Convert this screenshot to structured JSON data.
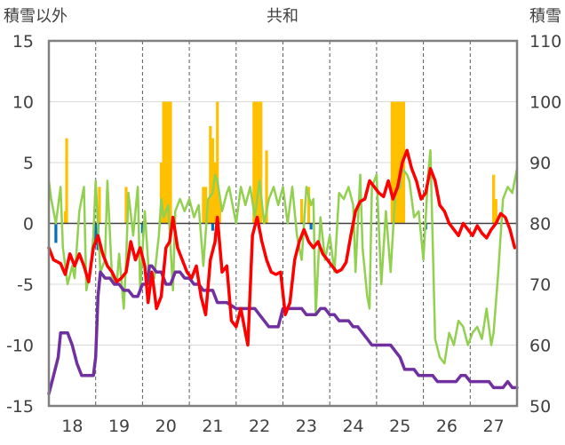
{
  "chart_data": {
    "type": "line",
    "title": "共和",
    "ylabel_left": "積雪以外",
    "ylabel_right": "積雪",
    "categories": [
      "18",
      "19",
      "20",
      "21",
      "22",
      "23",
      "24",
      "25",
      "26",
      "27"
    ],
    "ylim_left": [
      -15,
      15
    ],
    "ylim_right": [
      50,
      110
    ],
    "xlim": [
      17.5,
      27.5
    ],
    "left_ticks": [
      "15",
      "10",
      "5",
      "0",
      "-5",
      "-10",
      "-15"
    ],
    "right_ticks": [
      "110",
      "100",
      "90",
      "80",
      "70",
      "60",
      "50"
    ],
    "grid": {
      "horizontal": "solid",
      "vertical": "dashed"
    },
    "colors": {
      "red": "#ff0000",
      "green": "#92d050",
      "purple": "#7030a0",
      "orange": "#ffc000",
      "blue": "#0070c0",
      "grid": "#d9d9d9",
      "axis": "#808080"
    },
    "series": [
      {
        "key": "red",
        "axis": "left",
        "x": [
          17.5,
          17.6,
          17.75,
          17.85,
          17.95,
          18.05,
          18.15,
          18.25,
          18.35,
          18.45,
          18.55,
          18.65,
          18.75,
          18.85,
          18.95,
          19.05,
          19.15,
          19.25,
          19.35,
          19.45,
          19.55,
          19.62,
          19.7,
          19.8,
          19.9,
          20.0,
          20.08,
          20.15,
          20.25,
          20.35,
          20.45,
          20.55,
          20.65,
          20.75,
          20.85,
          20.95,
          21.05,
          21.1,
          21.2,
          21.3,
          21.4,
          21.5,
          21.6,
          21.7,
          21.75,
          21.85,
          21.95,
          22.05,
          22.15,
          22.25,
          22.35,
          22.45,
          22.55,
          22.65,
          22.75,
          22.85,
          22.95,
          23.05,
          23.15,
          23.25,
          23.35,
          23.45,
          23.55,
          23.65,
          23.75,
          23.85,
          23.95,
          24.05,
          24.15,
          24.25,
          24.35,
          24.45,
          24.55,
          24.65,
          24.75,
          24.85,
          24.95,
          25.05,
          25.15,
          25.25,
          25.35,
          25.45,
          25.55,
          25.65,
          25.75,
          25.85,
          25.95,
          26.05,
          26.15,
          26.25,
          26.35,
          26.45,
          26.55,
          26.65,
          26.75,
          26.85,
          26.95,
          27.05,
          27.15,
          27.25,
          27.35,
          27.45
        ],
        "y": [
          -2.0,
          -3.0,
          -3.3,
          -4.2,
          -2.5,
          -3.5,
          -2.5,
          -3.5,
          -4.8,
          -2.0,
          -1.0,
          -2.5,
          -3.5,
          -4.0,
          -4.8,
          -4.5,
          -4.0,
          -1.5,
          -3.0,
          -2.0,
          -3.5,
          -6.5,
          -4.0,
          -7.0,
          -6.0,
          -2.0,
          -1.5,
          0.5,
          -2.0,
          -3.0,
          -4.0,
          -4.5,
          -3.5,
          -6.0,
          -7.5,
          -3.0,
          -1.5,
          0.5,
          -4.0,
          -3.5,
          -8.0,
          -8.5,
          -7.0,
          -9.0,
          -10.0,
          -1.0,
          0.5,
          -1.5,
          -3.0,
          -4.0,
          -4.2,
          -4.0,
          -7.5,
          -6.5,
          -3.0,
          -1.5,
          -0.5,
          -1.5,
          -2.0,
          -1.5,
          -2.5,
          -3.0,
          -3.5,
          -4.0,
          -3.8,
          -3.2,
          -1.0,
          1.0,
          1.8,
          2.0,
          3.5,
          3.0,
          2.5,
          2.2,
          3.5,
          2.0,
          3.0,
          5.0,
          6.0,
          4.5,
          3.5,
          2.0,
          2.5,
          4.5,
          3.5,
          1.5,
          1.0,
          0.0,
          -0.5,
          -1.0,
          0.0,
          -0.5,
          -1.0,
          -0.2,
          -0.8,
          -1.2,
          -0.5,
          0.0,
          0.8,
          0.5,
          -0.5,
          -2.0
        ]
      },
      {
        "key": "green",
        "axis": "left",
        "x": [
          17.5,
          17.55,
          17.65,
          17.75,
          17.8,
          17.9,
          18.0,
          18.05,
          18.15,
          18.25,
          18.3,
          18.4,
          18.45,
          18.5,
          18.6,
          18.7,
          18.75,
          18.85,
          18.95,
          19.0,
          19.1,
          19.15,
          19.2,
          19.3,
          19.4,
          19.45,
          19.55,
          19.65,
          19.75,
          19.85,
          19.9,
          19.95,
          20.05,
          20.15,
          20.2,
          20.3,
          20.4,
          20.5,
          20.6,
          20.7,
          20.8,
          20.9,
          21.0,
          21.05,
          21.1,
          21.2,
          21.3,
          21.35,
          21.4,
          21.5,
          21.6,
          21.7,
          21.8,
          21.9,
          22.0,
          22.1,
          22.2,
          22.3,
          22.4,
          22.5,
          22.6,
          22.7,
          22.8,
          22.9,
          23.0,
          23.1,
          23.15,
          23.2,
          23.3,
          23.4,
          23.5,
          23.6,
          23.7,
          23.8,
          23.9,
          24.0,
          24.05,
          24.15,
          24.2,
          24.3,
          24.35,
          24.4,
          24.5,
          24.6,
          24.7,
          24.8,
          24.9,
          25.0,
          25.05,
          25.15,
          25.2,
          25.3,
          25.4,
          25.5,
          25.6,
          25.65,
          25.75,
          25.85,
          25.95,
          26.05,
          26.15,
          26.25,
          26.35,
          26.45,
          26.55,
          26.65,
          26.75,
          26.85,
          26.95,
          27.0,
          27.1,
          27.2,
          27.3,
          27.4,
          27.5
        ],
        "y": [
          3.5,
          2.0,
          0.0,
          3.0,
          -2.0,
          -5.0,
          -3.5,
          -4.5,
          1.0,
          3.0,
          -5.5,
          -3.5,
          -1.0,
          3.5,
          -4.0,
          -3.0,
          3.5,
          -4.5,
          -5.0,
          -2.5,
          -7.0,
          -3.0,
          2.5,
          -1.0,
          3.0,
          -5.5,
          1.0,
          -5.0,
          -4.5,
          -1.0,
          2.0,
          0.5,
          1.5,
          -5.5,
          1.0,
          2.0,
          1.0,
          2.0,
          0.5,
          1.5,
          -3.5,
          2.0,
          2.5,
          4.0,
          3.5,
          1.0,
          2.5,
          3.0,
          2.0,
          0.0,
          3.0,
          1.5,
          3.0,
          0.5,
          3.5,
          0.0,
          2.0,
          3.0,
          1.5,
          3.0,
          0.0,
          3.0,
          -1.0,
          -3.0,
          3.0,
          1.5,
          2.0,
          -7.5,
          0.5,
          -3.0,
          -1.0,
          -4.0,
          2.5,
          2.0,
          3.0,
          1.5,
          -4.0,
          4.0,
          -2.0,
          -6.0,
          -7.0,
          3.0,
          4.0,
          -5.0,
          1.0,
          -4.0,
          2.5,
          3.0,
          4.5,
          4.0,
          3.5,
          0.5,
          1.0,
          -3.0,
          4.0,
          6.0,
          -9.5,
          -11.0,
          -11.5,
          -9.0,
          -10.0,
          -8.0,
          -8.5,
          -10.0,
          -9.0,
          -8.5,
          -9.5,
          -7.0,
          -10.0,
          -9.0,
          -4.0,
          2.0,
          3.0,
          2.5,
          4.5
        ]
      },
      {
        "key": "purple",
        "axis": "right",
        "x": [
          17.5,
          17.6,
          17.7,
          17.75,
          17.8,
          17.9,
          18.0,
          18.1,
          18.2,
          18.3,
          18.4,
          18.45,
          18.5,
          18.55,
          18.6,
          18.7,
          18.8,
          18.9,
          19.0,
          19.1,
          19.2,
          19.3,
          19.4,
          19.5,
          19.6,
          19.65,
          19.7,
          19.8,
          19.9,
          20.0,
          20.1,
          20.2,
          20.3,
          20.4,
          20.5,
          20.6,
          20.7,
          20.8,
          20.9,
          21.0,
          21.1,
          21.2,
          21.3,
          21.5,
          21.7,
          21.9,
          22.0,
          22.1,
          22.2,
          22.3,
          22.4,
          22.5,
          22.6,
          22.7,
          22.8,
          22.9,
          23.0,
          23.1,
          23.2,
          23.3,
          23.4,
          23.5,
          23.6,
          23.7,
          23.9,
          24.0,
          24.1,
          24.2,
          24.3,
          24.4,
          24.5,
          24.6,
          24.7,
          24.8,
          24.9,
          25.0,
          25.1,
          25.2,
          25.3,
          25.4,
          25.5,
          25.6,
          25.7,
          25.8,
          25.9,
          26.0,
          26.1,
          26.2,
          26.3,
          26.4,
          26.5,
          26.6,
          26.7,
          26.8,
          26.9,
          27.0,
          27.1,
          27.2,
          27.3,
          27.4,
          27.5
        ],
        "y": [
          52,
          55,
          58,
          62,
          62,
          62,
          60,
          57,
          55,
          55,
          55,
          55,
          58,
          68,
          72,
          71,
          71,
          70,
          70,
          69,
          69,
          68,
          68,
          70,
          70,
          73,
          73,
          72,
          72,
          70,
          70,
          72,
          72,
          71,
          71,
          70,
          70,
          69,
          69,
          69,
          67,
          67,
          67,
          66,
          66,
          66,
          65,
          64,
          63,
          63,
          63,
          66,
          66,
          66,
          66,
          66,
          65,
          65,
          65,
          66,
          66,
          65,
          65,
          64,
          64,
          63,
          63,
          62,
          61,
          60,
          60,
          60,
          60,
          60,
          59,
          58,
          56,
          56,
          56,
          55,
          55,
          55,
          55,
          54,
          54,
          54,
          54,
          54,
          55,
          55,
          54,
          54,
          54,
          54,
          54,
          53,
          53,
          53,
          54,
          53,
          53
        ]
      }
    ],
    "bars": [
      {
        "x": 17.65,
        "y": -1.6,
        "color": "blue"
      },
      {
        "x": 17.85,
        "y": 1.0,
        "color": "orange"
      },
      {
        "x": 17.88,
        "y": 7.0,
        "color": "orange"
      },
      {
        "x": 18.5,
        "y": -1.8,
        "color": "blue"
      },
      {
        "x": 18.55,
        "y": -2.2,
        "color": "blue"
      },
      {
        "x": 18.58,
        "y": 3.0,
        "color": "orange"
      },
      {
        "x": 19.15,
        "y": 3.0,
        "color": "orange"
      },
      {
        "x": 19.5,
        "y": -0.8,
        "color": "blue"
      },
      {
        "x": 19.9,
        "y": 5.0,
        "color": "orange"
      },
      {
        "x": 19.95,
        "y": 10.0,
        "color": "orange"
      },
      {
        "x": 20.0,
        "y": 10.0,
        "color": "orange"
      },
      {
        "x": 20.05,
        "y": 10.0,
        "color": "orange"
      },
      {
        "x": 20.1,
        "y": 10.0,
        "color": "orange"
      },
      {
        "x": 20.8,
        "y": 3.0,
        "color": "orange"
      },
      {
        "x": 20.85,
        "y": 3.0,
        "color": "orange"
      },
      {
        "x": 20.9,
        "y": 2.0,
        "color": "orange"
      },
      {
        "x": 20.95,
        "y": 8.0,
        "color": "orange"
      },
      {
        "x": 21.0,
        "y": 7.0,
        "color": "orange"
      },
      {
        "x": 21.05,
        "y": 5.0,
        "color": "orange"
      },
      {
        "x": 21.1,
        "y": 10.0,
        "color": "orange"
      },
      {
        "x": 21.15,
        "y": 2.0,
        "color": "orange"
      },
      {
        "x": 21.0,
        "y": -0.6,
        "color": "blue"
      },
      {
        "x": 21.88,
        "y": 10.0,
        "color": "orange"
      },
      {
        "x": 21.93,
        "y": 10.0,
        "color": "orange"
      },
      {
        "x": 21.98,
        "y": 10.0,
        "color": "orange"
      },
      {
        "x": 22.03,
        "y": 10.0,
        "color": "orange"
      },
      {
        "x": 22.15,
        "y": 6.0,
        "color": "orange"
      },
      {
        "x": 22.9,
        "y": 2.0,
        "color": "orange"
      },
      {
        "x": 23.05,
        "y": 3.0,
        "color": "orange"
      },
      {
        "x": 23.1,
        "y": -0.5,
        "color": "blue"
      },
      {
        "x": 24.83,
        "y": 10.0,
        "color": "orange"
      },
      {
        "x": 24.88,
        "y": 10.0,
        "color": "orange"
      },
      {
        "x": 24.93,
        "y": 10.0,
        "color": "orange"
      },
      {
        "x": 24.98,
        "y": 10.0,
        "color": "orange"
      },
      {
        "x": 25.03,
        "y": 10.0,
        "color": "orange"
      },
      {
        "x": 25.08,
        "y": 10.0,
        "color": "orange"
      },
      {
        "x": 25.55,
        "y": -0.5,
        "color": "blue"
      },
      {
        "x": 27.0,
        "y": 4.0,
        "color": "orange"
      },
      {
        "x": 27.05,
        "y": 2.0,
        "color": "orange"
      }
    ]
  }
}
